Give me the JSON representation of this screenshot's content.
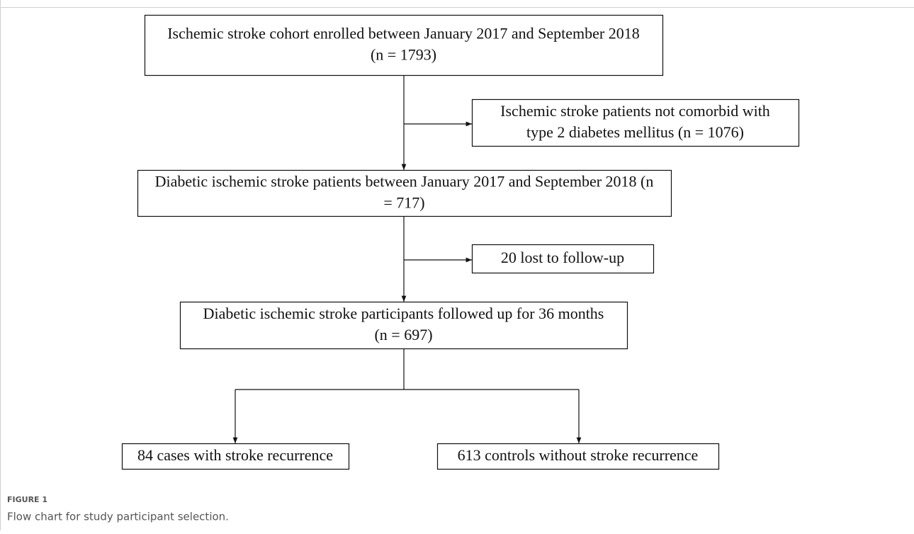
{
  "nodes": [
    {
      "lines": [
        "Ischemic stroke cohort enrolled between January 2017 and September 2018",
        "(n = 1793)"
      ]
    },
    {
      "lines": [
        "Ischemic stroke patients not comorbid with",
        "type 2 diabetes mellitus (n = 1076)"
      ]
    },
    {
      "lines": [
        "Diabetic ischemic stroke patients between January 2017 and September 2018 (n",
        "= 717)"
      ]
    },
    {
      "lines": [
        "20 lost to follow-up"
      ]
    },
    {
      "lines": [
        "Diabetic ischemic stroke participants followed up for 36 months",
        "(n = 697)"
      ]
    },
    {
      "lines": [
        "84 cases with stroke recurrence"
      ]
    },
    {
      "lines": [
        "613 controls without stroke recurrence"
      ]
    }
  ],
  "figure": {
    "label": "FIGURE 1",
    "caption": "Flow chart for study participant selection."
  }
}
